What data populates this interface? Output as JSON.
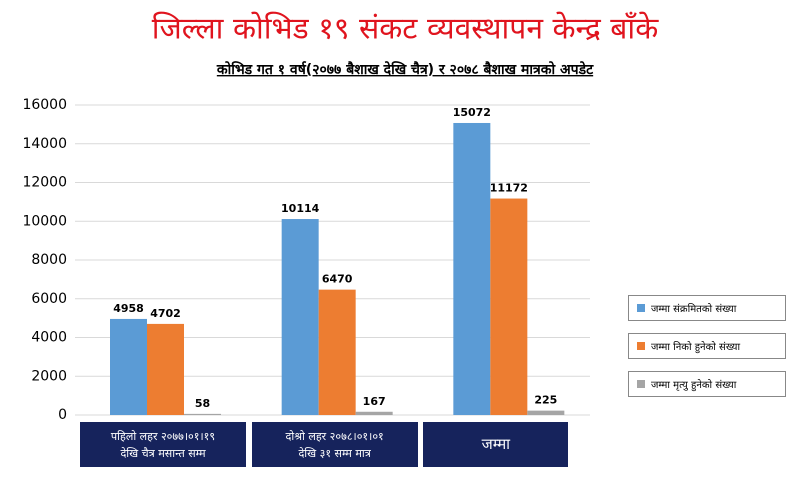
{
  "chart_data": {
    "type": "bar",
    "title": "जिल्ला कोभिड १९ संकट व्यवस्थापन केन्द्र बाँके",
    "subtitle": "कोभिड गत १ वर्ष(२०७७ बैशाख देखि चैत्र) र २०७८ बैशाख मात्रको अपडेट",
    "categories": [
      [
        "पहिलो लहर २०७७।०१।१९",
        "देखि चैत्र मसान्त सम्म"
      ],
      [
        "दोश्रो लहर २०७८।०१।०१",
        "देखि ३१ सम्म मात्र"
      ],
      [
        "जम्मा"
      ]
    ],
    "series": [
      {
        "name": "जम्मा संक्रमितको संख्या",
        "color": "#5b9bd5",
        "values": [
          4958,
          10114,
          15072
        ]
      },
      {
        "name": "जम्मा निको हुनेको संख्या",
        "color": "#ed7d31",
        "values": [
          4702,
          6470,
          11172
        ]
      },
      {
        "name": "जम्मा मृत्यु हुनेको संख्या",
        "color": "#a5a5a5",
        "values": [
          58,
          167,
          225
        ]
      }
    ],
    "ylim": [
      0,
      16000
    ],
    "yticks": [
      0,
      2000,
      4000,
      6000,
      8000,
      10000,
      12000,
      14000,
      16000
    ],
    "grid": true
  }
}
